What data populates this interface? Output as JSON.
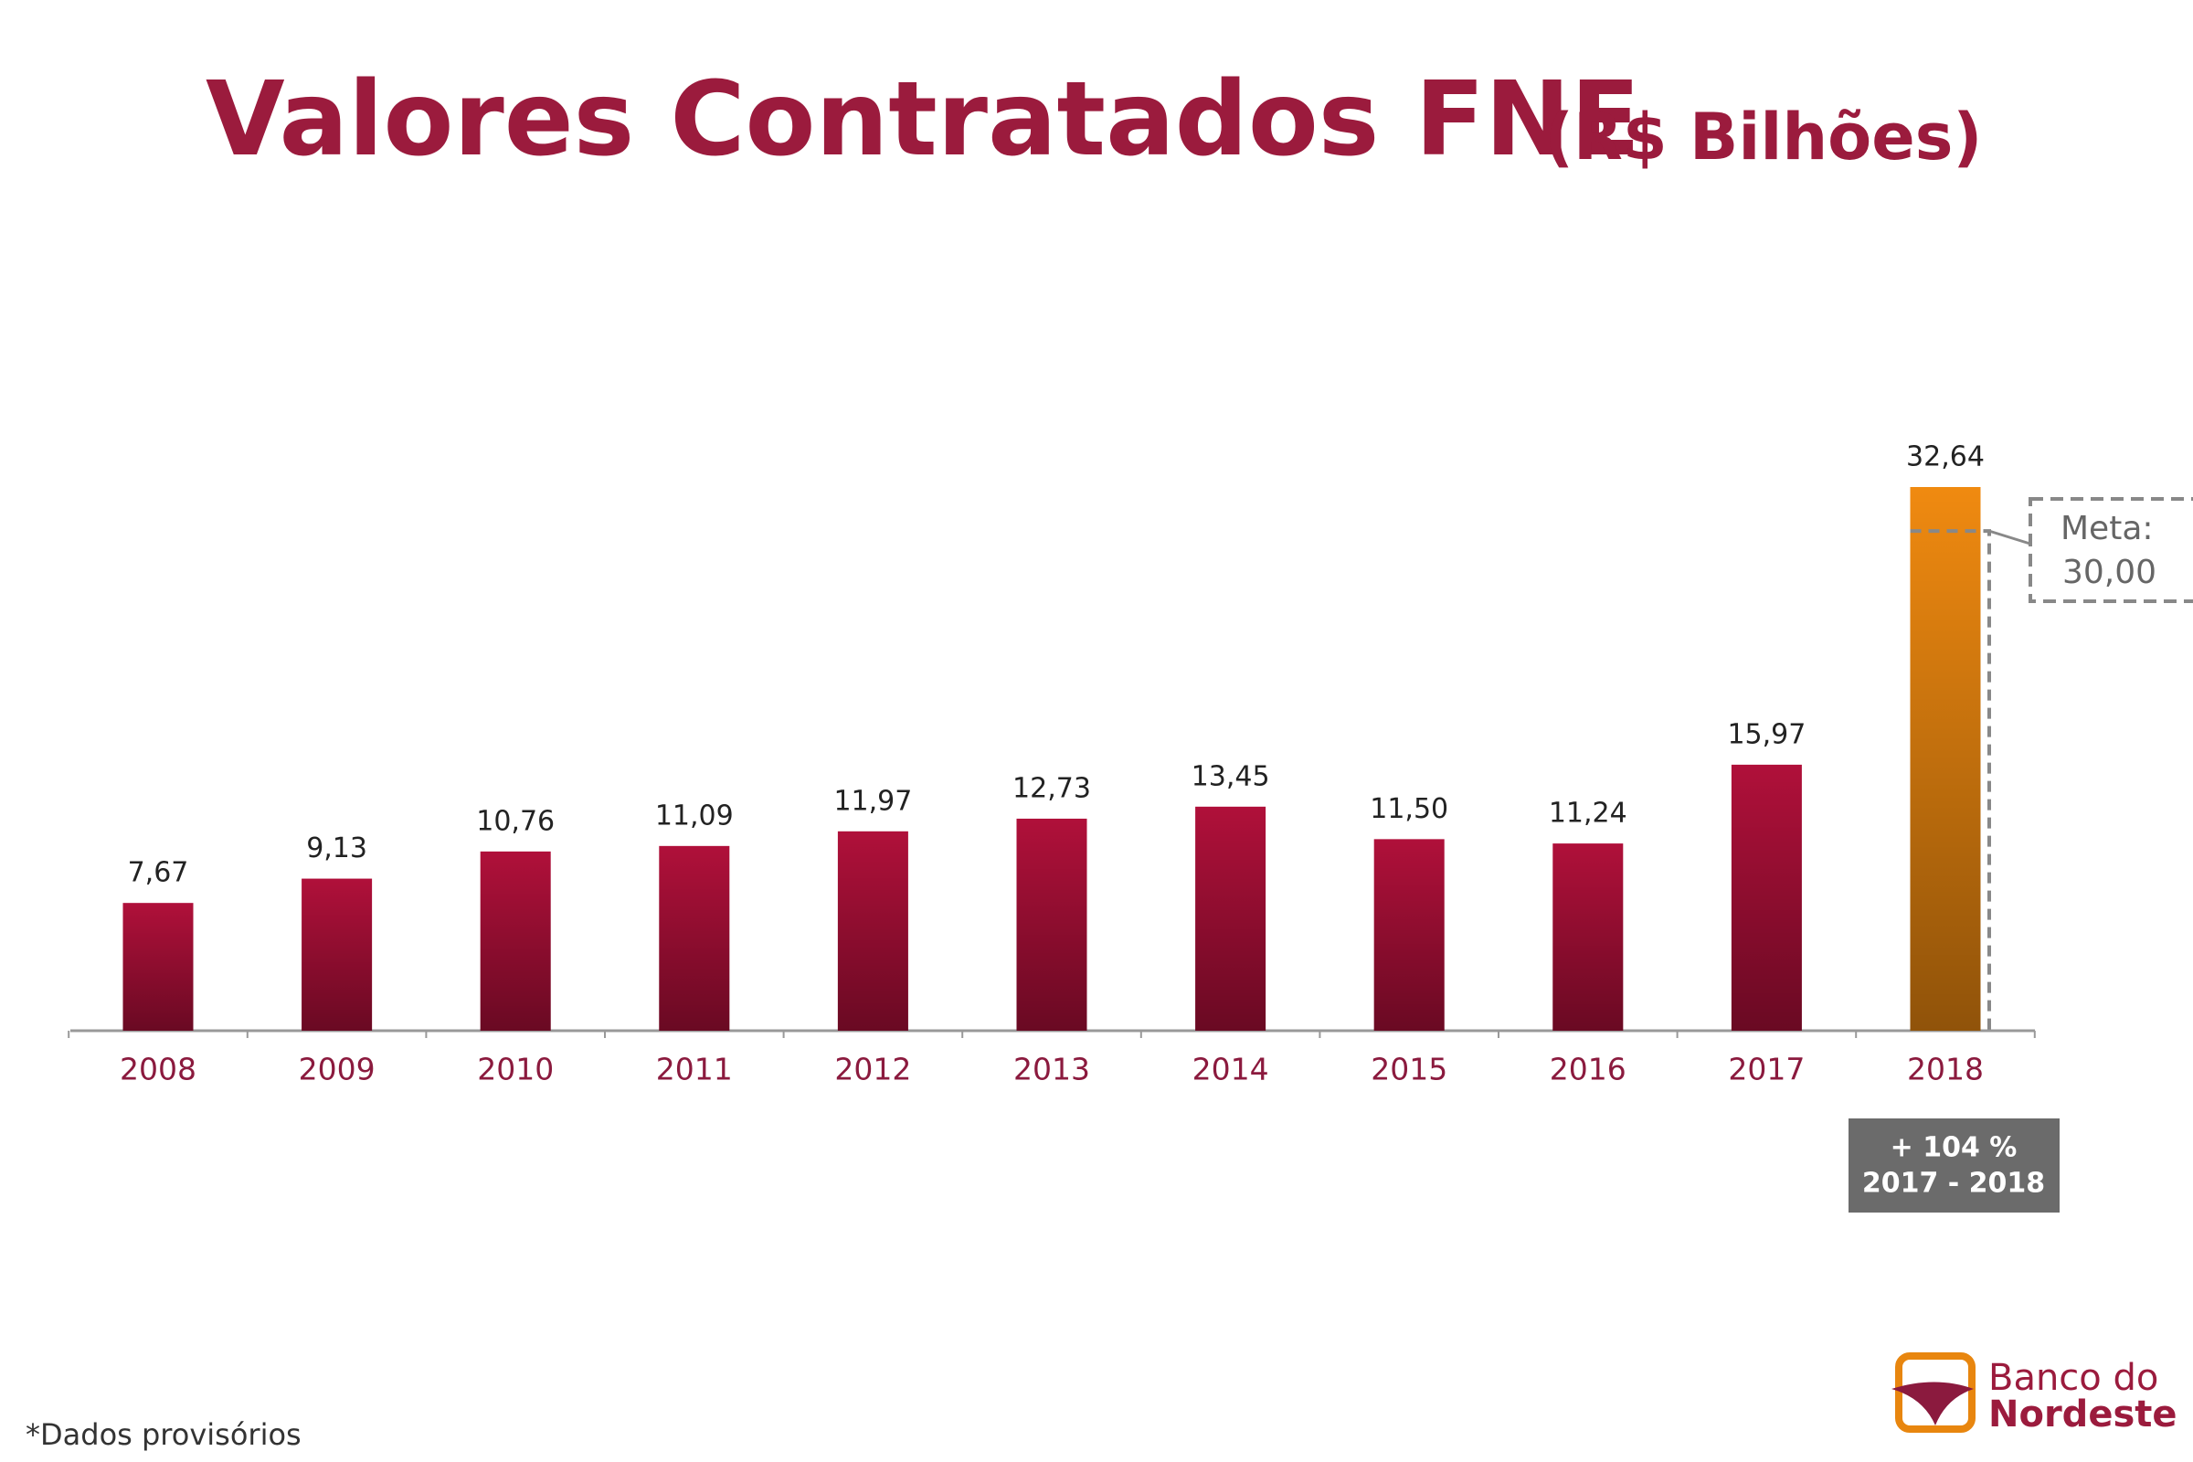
{
  "chart_data": {
    "type": "bar",
    "title": "Valores Contratados FNE",
    "subtitle": "(R$ Bilhões)",
    "categories": [
      "2008",
      "2009",
      "2010",
      "2011",
      "2012",
      "2013",
      "2014",
      "2015",
      "2016",
      "2017",
      "2018"
    ],
    "values": [
      7.67,
      9.13,
      10.76,
      11.09,
      11.97,
      12.73,
      13.45,
      11.5,
      11.24,
      15.97,
      32.64
    ],
    "value_labels": [
      "7,67",
      "9,13",
      "10,76",
      "11,09",
      "11,97",
      "12,73",
      "13,45",
      "11,50",
      "11,24",
      "15,97",
      "32,64"
    ],
    "colors": [
      "#b0103a",
      "#b0103a",
      "#b0103a",
      "#b0103a",
      "#b0103a",
      "#b0103a",
      "#b0103a",
      "#b0103a",
      "#b0103a",
      "#b0103a",
      "#f08a10"
    ],
    "target": {
      "label": "Meta:",
      "value": 30,
      "value_label": "30,00"
    },
    "annotation": {
      "line1": "+ 104 %",
      "line2": "2017 - 2018"
    },
    "footnote": "*Dados provisórios",
    "logo": {
      "line1": "Banco do",
      "line2": "Nordeste"
    }
  }
}
